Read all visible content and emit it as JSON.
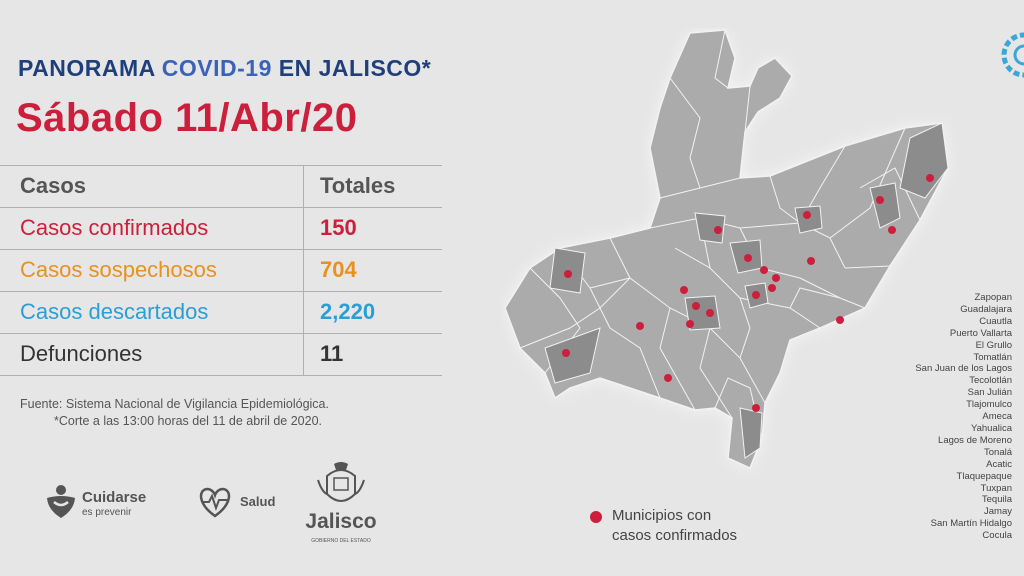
{
  "header": {
    "title_part1": "PANORAMA ",
    "title_part2": "COVID-19",
    "title_part3": " EN JALISCO",
    "title_star": "*",
    "date": "Sábado 11/Abr/20"
  },
  "table": {
    "header_label": "Casos",
    "header_value": "Totales",
    "rows": [
      {
        "label": "Casos confirmados",
        "value": "150"
      },
      {
        "label": "Casos sospechosos",
        "value": "704"
      },
      {
        "label": "Casos descartados",
        "value": "2,220"
      },
      {
        "label": "Defunciones",
        "value": "11"
      }
    ]
  },
  "source": {
    "line1": "Fuente: Sistema Nacional de Vigilancia Epidemiológica.",
    "line2": "*Corte a las 13:00 horas del 11 de abril de 2020."
  },
  "logos": {
    "cuidarse_name": "Cuidarse",
    "cuidarse_sub": "es prevenir",
    "salud_name": "Salud",
    "jalisco_name": "Jalisco",
    "jalisco_sub": "GOBIERNO DEL ESTADO"
  },
  "legend": {
    "line1": "Municipios con",
    "line2": "casos confirmados"
  },
  "municipalities": [
    "Zapopan",
    "Guadalajara",
    "Cuautla",
    "Puerto Vallarta",
    "El Grullo",
    "Tomatlán",
    "San Juan de los Lagos",
    "Tecolotlán",
    "San Julián",
    "Tlajomulco",
    "Ameca",
    "Yahualica",
    "Lagos de Moreno",
    "Tonalá",
    "Acatic",
    "Tlaquepaque",
    "Tuxpan",
    "Tequila",
    "Jamay",
    "San Martín Hidalgo",
    "Cocula"
  ],
  "colors": {
    "title_red": "#cc1f3c",
    "navy": "#1f3f7a",
    "confirmed": "#cc1f3c",
    "suspected": "#e8911e",
    "discarded": "#2b9ed6",
    "map_gray": "#a9a9a9",
    "map_highlight": "#8c8c8c"
  },
  "icons": [
    "cuidarse-logo-icon",
    "salud-logo-icon",
    "jalisco-coat-of-arms-icon",
    "corner-gear-icon",
    "red-dot-icon"
  ]
}
